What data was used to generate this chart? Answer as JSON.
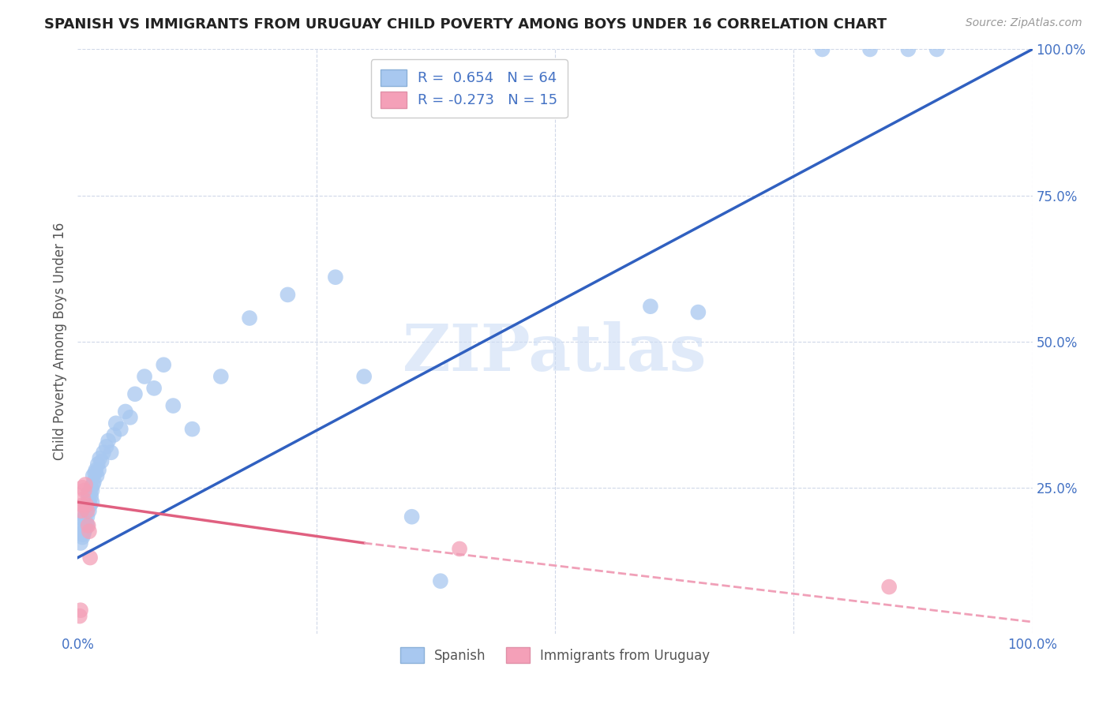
{
  "title": "SPANISH VS IMMIGRANTS FROM URUGUAY CHILD POVERTY AMONG BOYS UNDER 16 CORRELATION CHART",
  "source": "Source: ZipAtlas.com",
  "ylabel": "Child Poverty Among Boys Under 16",
  "xlim": [
    0,
    1.0
  ],
  "ylim": [
    0,
    1.0
  ],
  "xtick_labels": [
    "0.0%",
    "",
    "",
    "",
    "100.0%"
  ],
  "xtick_values": [
    0.0,
    0.25,
    0.5,
    0.75,
    1.0
  ],
  "right_ytick_labels": [
    "25.0%",
    "50.0%",
    "75.0%",
    "100.0%"
  ],
  "right_ytick_values": [
    0.25,
    0.5,
    0.75,
    1.0
  ],
  "series1_color": "#a8c8f0",
  "series2_color": "#f4a0b8",
  "line1_color": "#3060c0",
  "line2_color_solid": "#e06080",
  "line2_color_dash": "#f0a0b8",
  "watermark": "ZIPatlas",
  "spanish_x": [
    0.003,
    0.004,
    0.004,
    0.005,
    0.005,
    0.006,
    0.006,
    0.007,
    0.007,
    0.008,
    0.008,
    0.009,
    0.009,
    0.01,
    0.01,
    0.01,
    0.011,
    0.011,
    0.012,
    0.012,
    0.013,
    0.013,
    0.014,
    0.014,
    0.015,
    0.015,
    0.016,
    0.016,
    0.017,
    0.018,
    0.019,
    0.02,
    0.021,
    0.022,
    0.023,
    0.025,
    0.027,
    0.03,
    0.032,
    0.035,
    0.038,
    0.04,
    0.045,
    0.05,
    0.055,
    0.06,
    0.07,
    0.08,
    0.09,
    0.1,
    0.12,
    0.15,
    0.18,
    0.22,
    0.27,
    0.3,
    0.35,
    0.38,
    0.6,
    0.65,
    0.78,
    0.83,
    0.87,
    0.9
  ],
  "spanish_y": [
    0.155,
    0.17,
    0.19,
    0.165,
    0.18,
    0.17,
    0.195,
    0.175,
    0.2,
    0.18,
    0.21,
    0.19,
    0.22,
    0.185,
    0.2,
    0.215,
    0.23,
    0.24,
    0.21,
    0.225,
    0.22,
    0.24,
    0.235,
    0.25,
    0.225,
    0.245,
    0.255,
    0.27,
    0.26,
    0.275,
    0.28,
    0.27,
    0.29,
    0.28,
    0.3,
    0.295,
    0.31,
    0.32,
    0.33,
    0.31,
    0.34,
    0.36,
    0.35,
    0.38,
    0.37,
    0.41,
    0.44,
    0.42,
    0.46,
    0.39,
    0.35,
    0.44,
    0.54,
    0.58,
    0.61,
    0.44,
    0.2,
    0.09,
    0.56,
    0.55,
    1.0,
    1.0,
    1.0,
    1.0
  ],
  "uruguay_x": [
    0.002,
    0.003,
    0.004,
    0.005,
    0.005,
    0.006,
    0.007,
    0.008,
    0.009,
    0.01,
    0.011,
    0.012,
    0.013,
    0.4,
    0.85
  ],
  "uruguay_y": [
    0.03,
    0.04,
    0.21,
    0.22,
    0.25,
    0.23,
    0.245,
    0.255,
    0.22,
    0.21,
    0.185,
    0.175,
    0.13,
    0.145,
    0.08
  ],
  "background_color": "#ffffff",
  "grid_color": "#d0d8e8"
}
